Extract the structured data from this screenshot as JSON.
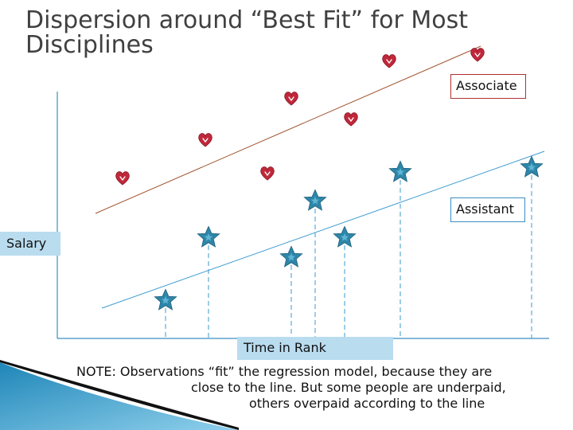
{
  "title": {
    "line1": "Dispersion around “Best Fit” for Most",
    "line2": "Disciplines"
  },
  "labels": {
    "associate": "Associate",
    "assistant": "Assistant",
    "salary": "Salary",
    "time_in_rank": "Time in Rank"
  },
  "note": {
    "line1": "NOTE:  Observations “fit” the regression model, because they are",
    "line2": "close to the line.  But some people are underpaid,",
    "line3": "others overpaid according to the line"
  },
  "colors": {
    "heart": "#c0283a",
    "star": "#2e86a8",
    "associate_line": "#a0522d",
    "assistant_line": "#3a9ad0",
    "label_fill": "#b9dcef",
    "title": "#404040"
  },
  "icons": {
    "associate_marker": "heart-icon",
    "assistant_marker": "star-icon"
  }
}
